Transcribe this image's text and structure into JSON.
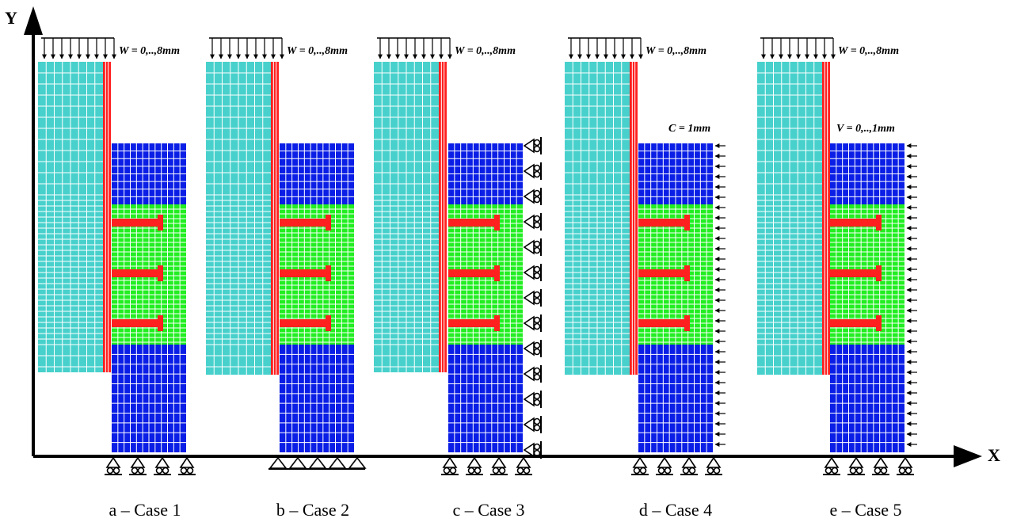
{
  "axes": {
    "x_label": "X",
    "y_label": "Y"
  },
  "colors": {
    "upper_block": "#48d1cc",
    "plate": "#ff2020",
    "lower_block": "#0a1ee6",
    "middle_block": "#22ee22",
    "grid_line": "#ffffff",
    "outline": "#000000"
  },
  "cases": [
    {
      "caption": "a – Case 1",
      "top_load": "W = 0,..,8mm",
      "side_label": "",
      "side_bc": "none",
      "bottom_bc": "roller"
    },
    {
      "caption": "b – Case 2",
      "top_load": "W = 0,..,8mm",
      "side_label": "",
      "side_bc": "none",
      "bottom_bc": "pinned"
    },
    {
      "caption": "c – Case 3",
      "top_load": "W = 0,..,8mm",
      "side_label": "",
      "side_bc": "roller",
      "bottom_bc": "roller"
    },
    {
      "caption": "d – Case 4",
      "top_load": "W = 0,..,8mm",
      "side_label": "C = 1mm",
      "side_bc": "arrows",
      "bottom_bc": "roller"
    },
    {
      "caption": "e – Case 5",
      "top_load": "W = 0,..,8mm",
      "side_label": "V = 0,..,1mm",
      "side_bc": "arrows",
      "bottom_bc": "roller"
    }
  ]
}
